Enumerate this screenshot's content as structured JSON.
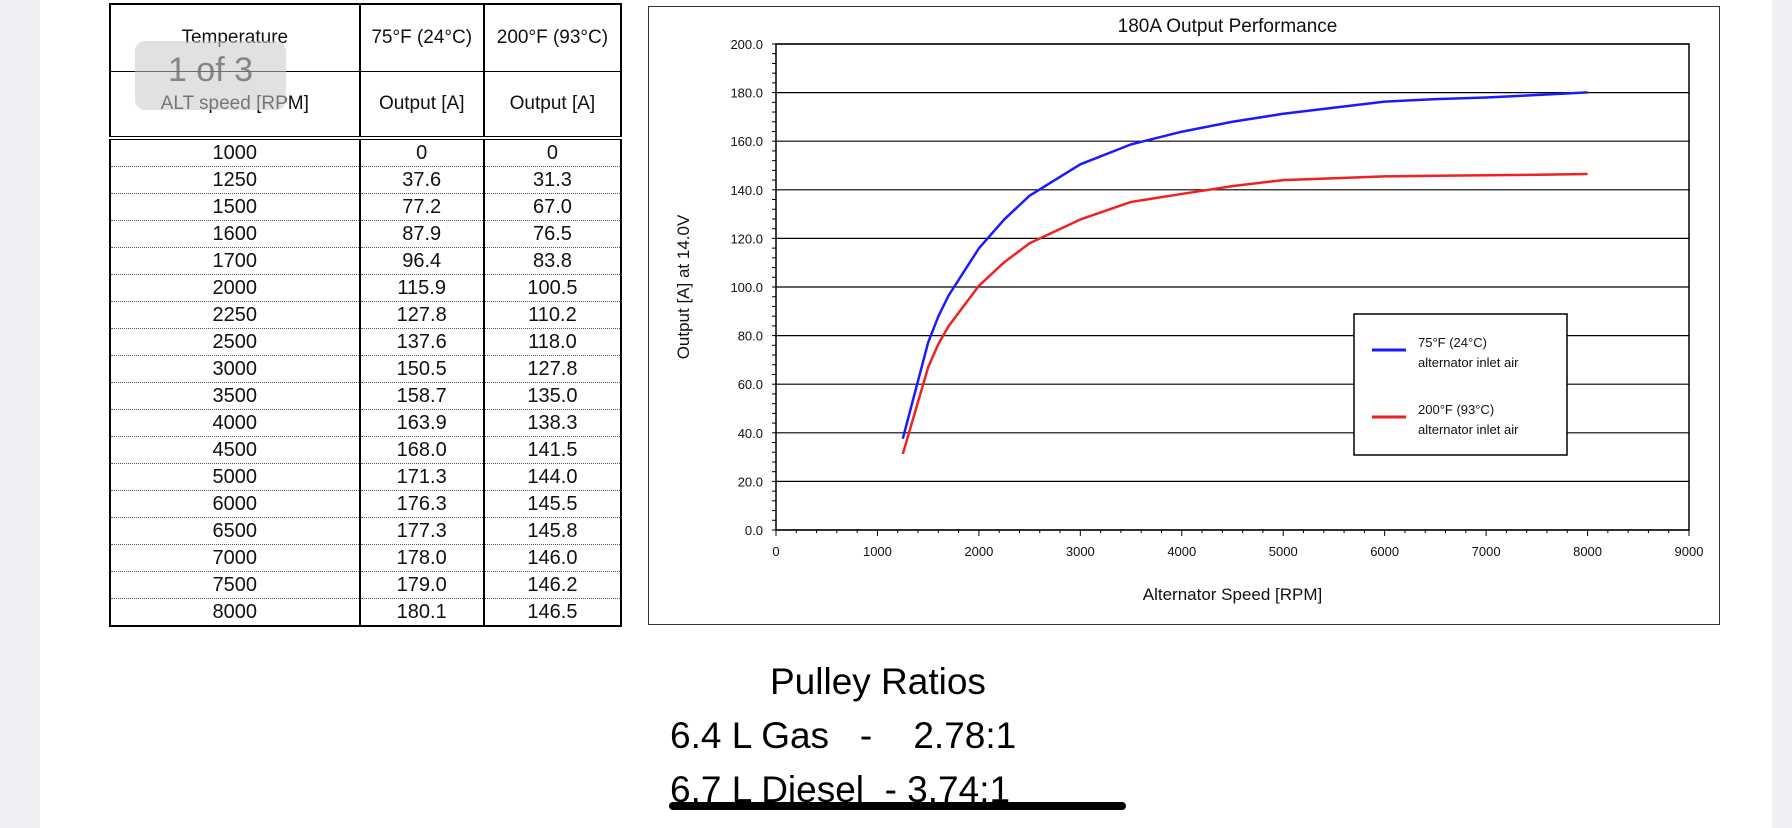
{
  "overlay": {
    "page_indicator": "1 of 3"
  },
  "table": {
    "header_row1": [
      "Temperature",
      "75°F (24°C)",
      "200°F (93°C)"
    ],
    "header_row2": [
      "ALT speed [RPM]",
      "Output [A]",
      "Output [A]"
    ],
    "rows": [
      [
        "1000",
        "0",
        "0"
      ],
      [
        "1250",
        "37.6",
        "31.3"
      ],
      [
        "1500",
        "77.2",
        "67.0"
      ],
      [
        "1600",
        "87.9",
        "76.5"
      ],
      [
        "1700",
        "96.4",
        "83.8"
      ],
      [
        "2000",
        "115.9",
        "100.5"
      ],
      [
        "2250",
        "127.8",
        "110.2"
      ],
      [
        "2500",
        "137.6",
        "118.0"
      ],
      [
        "3000",
        "150.5",
        "127.8"
      ],
      [
        "3500",
        "158.7",
        "135.0"
      ],
      [
        "4000",
        "163.9",
        "138.3"
      ],
      [
        "4500",
        "168.0",
        "141.5"
      ],
      [
        "5000",
        "171.3",
        "144.0"
      ],
      [
        "6000",
        "176.3",
        "145.5"
      ],
      [
        "6500",
        "177.3",
        "145.8"
      ],
      [
        "7000",
        "178.0",
        "146.0"
      ],
      [
        "7500",
        "179.0",
        "146.2"
      ],
      [
        "8000",
        "180.1",
        "146.5"
      ]
    ]
  },
  "chart_data": {
    "type": "line",
    "title": "180A Output Performance",
    "xlabel": "Alternator Speed [RPM]",
    "ylabel": "Output [A] at 14.0V",
    "xlim": [
      0,
      9000
    ],
    "ylim": [
      0,
      200
    ],
    "xticks": [
      "0",
      "1000",
      "2000",
      "3000",
      "4000",
      "5000",
      "6000",
      "7000",
      "8000",
      "9000"
    ],
    "yticks": [
      "0.0",
      "20.0",
      "40.0",
      "60.0",
      "80.0",
      "100.0",
      "120.0",
      "140.0",
      "160.0",
      "180.0",
      "200.0"
    ],
    "grid": "horizontal",
    "legend_position": "right-middle",
    "x": [
      1250,
      1500,
      1600,
      1700,
      2000,
      2250,
      2500,
      3000,
      3500,
      4000,
      4500,
      5000,
      6000,
      6500,
      7000,
      7500,
      8000
    ],
    "series": [
      {
        "name": "75°F (24°C)",
        "name2": "alternator inlet air",
        "color": "#1a1aff",
        "values": [
          37.6,
          77.2,
          87.9,
          96.4,
          115.9,
          127.8,
          137.6,
          150.5,
          158.7,
          163.9,
          168.0,
          171.3,
          176.3,
          177.3,
          178.0,
          179.0,
          180.1
        ]
      },
      {
        "name": "200°F (93°C)",
        "name2": "alternator inlet air",
        "color": "#ee2222",
        "values": [
          31.3,
          67.0,
          76.5,
          83.8,
          100.5,
          110.2,
          118.0,
          127.8,
          135.0,
          138.3,
          141.5,
          144.0,
          145.5,
          145.8,
          146.0,
          146.2,
          146.5
        ]
      }
    ]
  },
  "pulley": {
    "title": "Pulley Ratios",
    "lines": [
      "6.4 L Gas   -    2.78:1",
      "6.7 L Diesel  - 3.74:1"
    ]
  }
}
